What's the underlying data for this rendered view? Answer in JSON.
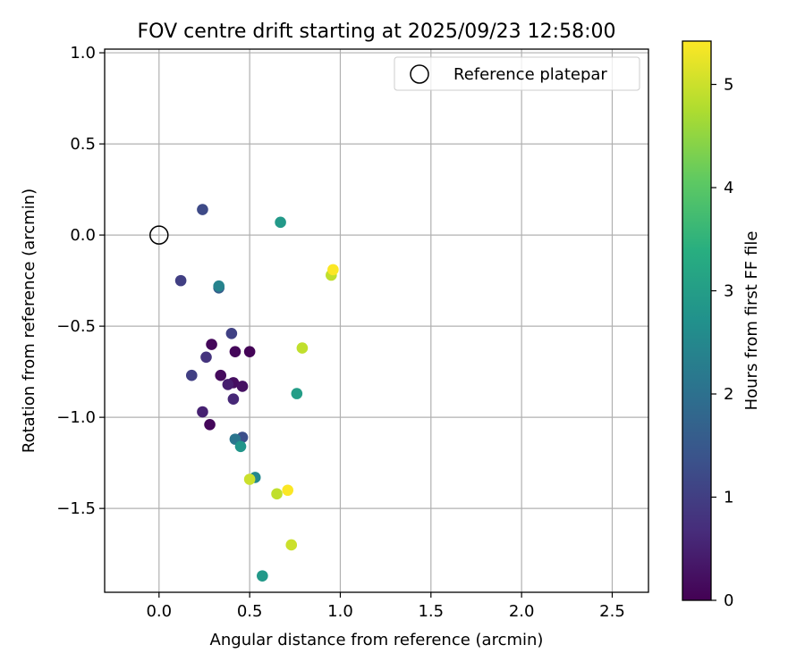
{
  "chart_data": {
    "type": "scatter",
    "title": "FOV centre drift starting at 2025/09/23 12:58:00",
    "xlabel": "Angular distance from reference (arcmin)",
    "ylabel": "Rotation from reference (arcmin)",
    "xlim": [
      -0.3,
      2.7
    ],
    "ylim": [
      -1.96,
      1.02
    ],
    "x_ticks": [
      0.0,
      0.5,
      1.0,
      1.5,
      2.0,
      2.5
    ],
    "x_tick_labels": [
      "0.0",
      "0.5",
      "1.0",
      "1.5",
      "2.0",
      "2.5"
    ],
    "y_ticks": [
      1.0,
      0.5,
      0.0,
      -0.5,
      -1.0,
      -1.5
    ],
    "y_tick_labels": [
      "1.0",
      "0.5",
      "0.0",
      "−0.5",
      "−1.0",
      "−1.5"
    ],
    "grid": true,
    "legend": {
      "position": "top-right",
      "entries": [
        {
          "label": "Reference platepar",
          "marker": "open-circle"
        }
      ]
    },
    "reference_point": {
      "x": 0.0,
      "y": 0.0
    },
    "colorbar": {
      "label": "Hours from first FF file",
      "colormap": "viridis",
      "range": [
        0,
        5.42
      ],
      "ticks": [
        0,
        1,
        2,
        3,
        4,
        5
      ],
      "tick_labels": [
        "0",
        "1",
        "2",
        "3",
        "4",
        "5"
      ]
    },
    "points": [
      {
        "x": 0.29,
        "y": -0.6,
        "h": 0.1
      },
      {
        "x": 0.42,
        "y": -0.64,
        "h": 0.1
      },
      {
        "x": 0.5,
        "y": -0.64,
        "h": 0.05
      },
      {
        "x": 0.34,
        "y": -0.77,
        "h": 0.15
      },
      {
        "x": 0.41,
        "y": -0.81,
        "h": 0.2
      },
      {
        "x": 0.46,
        "y": -0.83,
        "h": 0.25
      },
      {
        "x": 0.38,
        "y": -0.82,
        "h": 0.45
      },
      {
        "x": 0.28,
        "y": -1.04,
        "h": 0.1
      },
      {
        "x": 0.24,
        "y": -0.97,
        "h": 0.5
      },
      {
        "x": 0.41,
        "y": -0.9,
        "h": 0.6
      },
      {
        "x": 0.26,
        "y": -0.67,
        "h": 0.8
      },
      {
        "x": 0.18,
        "y": -0.77,
        "h": 1.0
      },
      {
        "x": 0.4,
        "y": -0.54,
        "h": 1.05
      },
      {
        "x": 0.12,
        "y": -0.25,
        "h": 1.0
      },
      {
        "x": 0.24,
        "y": 0.14,
        "h": 1.2
      },
      {
        "x": 0.33,
        "y": -0.29,
        "h": 1.6
      },
      {
        "x": 0.33,
        "y": -0.28,
        "h": 2.4
      },
      {
        "x": 0.46,
        "y": -1.11,
        "h": 1.3
      },
      {
        "x": 0.42,
        "y": -1.12,
        "h": 2.1
      },
      {
        "x": 0.45,
        "y": -1.16,
        "h": 2.8
      },
      {
        "x": 0.53,
        "y": -1.33,
        "h": 2.5
      },
      {
        "x": 0.57,
        "y": -1.87,
        "h": 2.9
      },
      {
        "x": 0.67,
        "y": 0.07,
        "h": 2.9
      },
      {
        "x": 0.76,
        "y": -0.87,
        "h": 3.0
      },
      {
        "x": 0.79,
        "y": -0.62,
        "h": 4.9
      },
      {
        "x": 0.95,
        "y": -0.22,
        "h": 4.9
      },
      {
        "x": 0.96,
        "y": -0.19,
        "h": 5.4
      },
      {
        "x": 0.5,
        "y": -1.34,
        "h": 5.0
      },
      {
        "x": 0.65,
        "y": -1.42,
        "h": 4.9
      },
      {
        "x": 0.71,
        "y": -1.4,
        "h": 5.4
      },
      {
        "x": 0.73,
        "y": -1.7,
        "h": 5.0
      }
    ]
  }
}
